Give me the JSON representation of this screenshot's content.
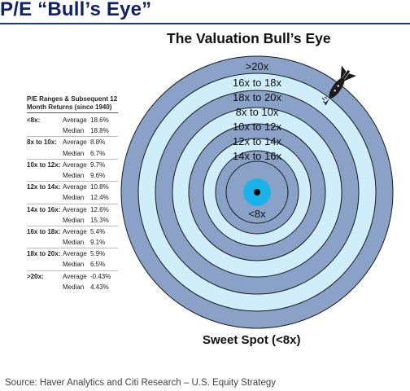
{
  "slide_title": "P/E “Bull’s Eye”",
  "chart_title": "The Valuation Bull’s Eye",
  "legend": {
    "header": "P/E Ranges & Subsequent 12 Month Returns (since 1940)",
    "rows": [
      {
        "range": "<8x:",
        "average_label": "Average",
        "average": "18.6%",
        "median_label": "Median",
        "median": "18.8%"
      },
      {
        "range": "8x to 10x:",
        "average_label": "Average",
        "average": "8.8%",
        "median_label": "Median",
        "median": "6.7%"
      },
      {
        "range": "10x to 12x:",
        "average_label": "Average",
        "average": "9.7%",
        "median_label": "Median",
        "median": "9.6%"
      },
      {
        "range": "12x to 14x:",
        "average_label": "Average",
        "average": "10.8%",
        "median_label": "Median",
        "median": "12.4%"
      },
      {
        "range": "14x to 16x:",
        "average_label": "Average",
        "average": "12.6%",
        "median_label": "Median",
        "median": "15.3%"
      },
      {
        "range": "16x to 18x:",
        "average_label": "Average",
        "average": "5.4%",
        "median_label": "Median",
        "median": "9.1%"
      },
      {
        "range": "18x to 20x:",
        "average_label": "Average",
        "average": "5.9%",
        "median_label": "Median",
        "median": "6.5%"
      },
      {
        "range": ">20x:",
        "average_label": "Average",
        "average": "-0.43%",
        "median_label": "Median",
        "median": "4.43%"
      }
    ]
  },
  "rings": [
    ">20x",
    "16x to 18x",
    "18x to 20x",
    "8x to 10x",
    "10x to 12x",
    "12x to 14x",
    "14x to 16x"
  ],
  "center_label": "<8x",
  "sweet_spot_label": "Sweet Spot (<8x)",
  "source": "Source: Haver Analytics and Citi Research – U.S. Equity Strategy",
  "colors": {
    "title": "#10206b",
    "ring_dark": "#8aa2c8",
    "ring_light": "#cfeefa",
    "bullseye": "#1ab2e8",
    "stroke": "#1a1a1a"
  }
}
